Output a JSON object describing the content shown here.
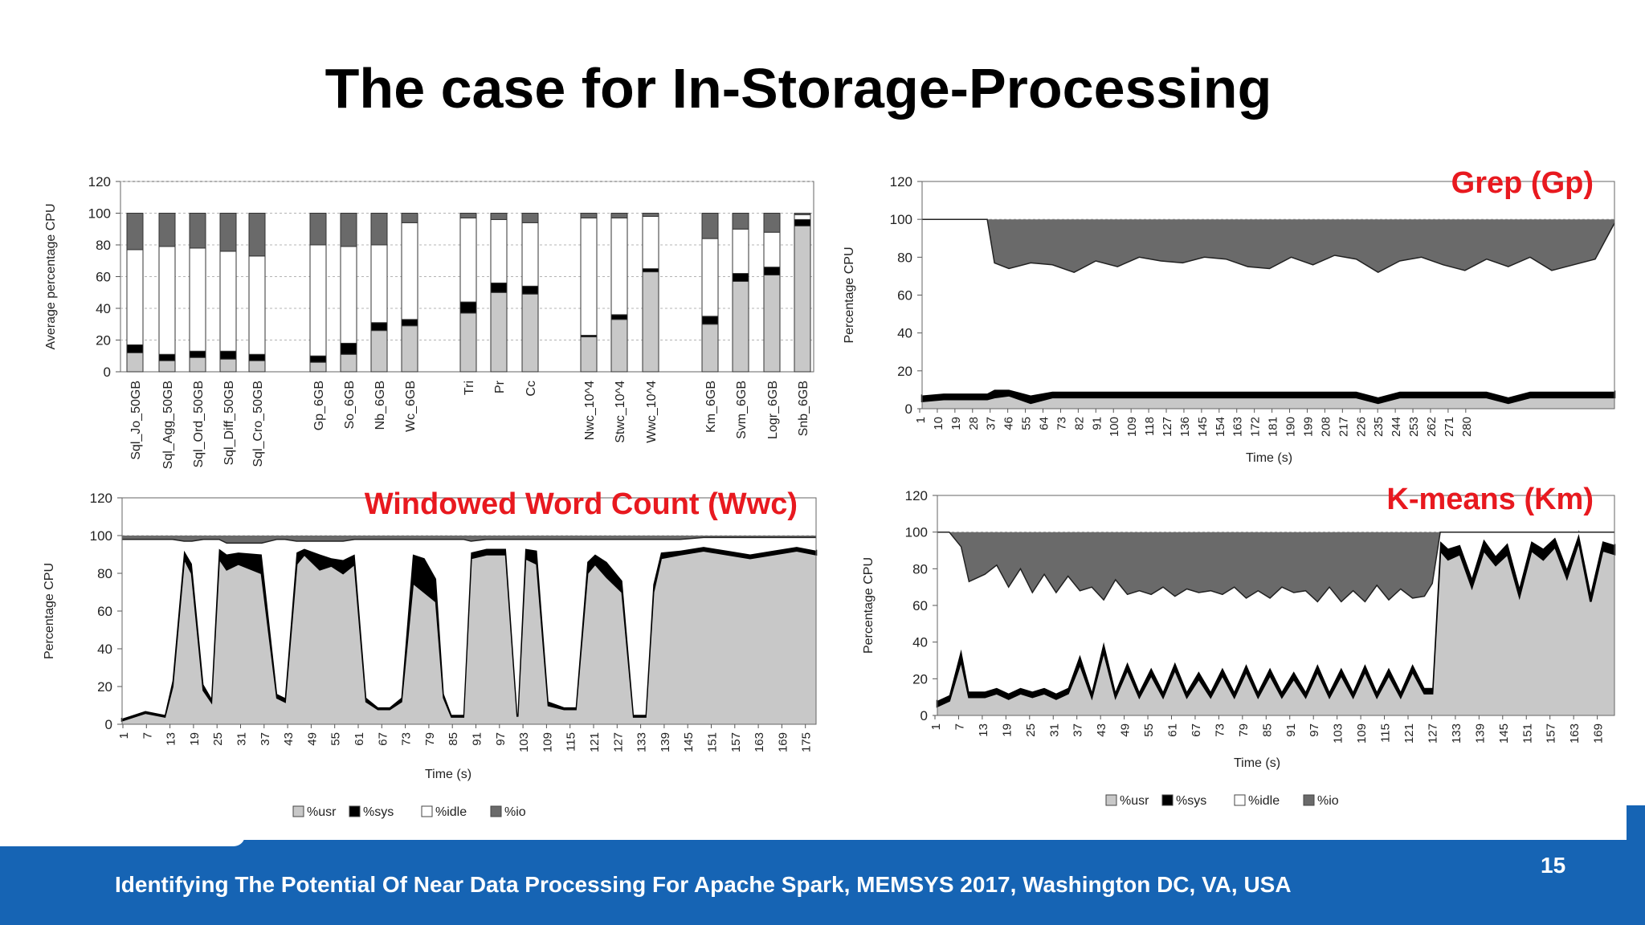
{
  "slide": {
    "title": "The case for In-Storage-Processing",
    "footer": "Identifying The Potential Of Near Data Processing For Apache Spark, MEMSYS 2017, Washington DC, VA, USA",
    "page_number": "15"
  },
  "colors": {
    "usr": "#c8c8c8",
    "sys": "#000000",
    "idle": "#ffffff",
    "io": "#6a6a6a",
    "title_red": "#e8191f",
    "footer_blue": "#1664b4"
  },
  "legend": [
    "%usr",
    "%sys",
    "%idle",
    "%io"
  ],
  "chart_data": [
    {
      "type": "bar",
      "stacked": true,
      "ylabel": "Average percentage CPU",
      "ylim": [
        0,
        120
      ],
      "yticks": [
        0,
        20,
        40,
        60,
        80,
        100,
        120
      ],
      "categories": [
        "Sql_Jo_50GB",
        "Sql_Agg_50GB",
        "Sql_Ord_50GB",
        "Sql_Diff_50GB",
        "Sql_Cro_50GB",
        "Gp_6GB",
        "So_6GB",
        "Nb_6GB",
        "Wc_6GB",
        "Tri",
        "Pr",
        "Cc",
        "Nwc_10^4",
        "Stwc_10^4",
        "Wwc_10^4",
        "Km_6GB",
        "Svm_6GB",
        "Logr_6GB",
        "Snb_6GB"
      ],
      "series": [
        {
          "name": "%usr",
          "values": [
            12,
            7,
            9,
            8,
            7,
            6,
            11,
            26,
            29,
            37,
            50,
            49,
            22,
            33,
            63,
            30,
            57,
            61,
            92
          ]
        },
        {
          "name": "%sys",
          "values": [
            5,
            4,
            4,
            5,
            4,
            4,
            7,
            5,
            4,
            7,
            6,
            5,
            1,
            3,
            2,
            5,
            5,
            5,
            4
          ]
        },
        {
          "name": "%idle",
          "values": [
            60,
            68,
            65,
            63,
            62,
            70,
            61,
            49,
            61,
            53,
            40,
            40,
            74,
            61,
            33,
            49,
            28,
            22,
            3
          ]
        },
        {
          "name": "%io",
          "values": [
            23,
            21,
            22,
            24,
            27,
            20,
            21,
            20,
            6,
            3,
            4,
            6,
            3,
            3,
            2,
            16,
            10,
            12,
            1
          ]
        }
      ]
    },
    {
      "type": "area",
      "stacked": true,
      "title": "Grep (Gp)",
      "xlabel": "Time (s)",
      "ylabel": "Percentage CPU",
      "ylim": [
        0,
        120
      ],
      "yticks": [
        0,
        20,
        40,
        60,
        80,
        100,
        120
      ],
      "xlim": [
        1,
        288
      ],
      "x_tick_labels": [
        "1",
        "10",
        "19",
        "28",
        "37",
        "46",
        "55",
        "64",
        "73",
        "82",
        "91",
        "100",
        "109",
        "118",
        "127",
        "136",
        "145",
        "154",
        "163",
        "172",
        "181",
        "190",
        "199",
        "208",
        "217",
        "226",
        "235",
        "244",
        "253",
        "262",
        "271",
        "280"
      ],
      "x": [
        1,
        10,
        19,
        28,
        31,
        37,
        46,
        55,
        64,
        73,
        82,
        91,
        100,
        109,
        118,
        127,
        136,
        145,
        154,
        163,
        172,
        181,
        190,
        199,
        208,
        217,
        226,
        235,
        244,
        253,
        262,
        271,
        280,
        288
      ],
      "series": [
        {
          "name": "%usr",
          "values": [
            4,
            5,
            5,
            5,
            6,
            7,
            3,
            6,
            6,
            6,
            6,
            6,
            6,
            6,
            6,
            6,
            6,
            6,
            6,
            6,
            6,
            6,
            3,
            6,
            6,
            6,
            6,
            6,
            3,
            6,
            6,
            6,
            6,
            6
          ]
        },
        {
          "name": "%sys",
          "values": [
            3,
            3,
            3,
            3,
            4,
            3,
            4,
            3,
            3,
            3,
            3,
            3,
            3,
            3,
            3,
            3,
            3,
            3,
            3,
            3,
            3,
            3,
            3,
            3,
            3,
            3,
            3,
            3,
            3,
            3,
            3,
            3,
            3,
            3
          ]
        },
        {
          "name": "%idle",
          "values": [
            93,
            92,
            92,
            92,
            67,
            64,
            70,
            67,
            63,
            69,
            66,
            71,
            69,
            68,
            71,
            70,
            66,
            65,
            71,
            67,
            72,
            70,
            66,
            69,
            71,
            67,
            64,
            70,
            69,
            71,
            64,
            67,
            70,
            89
          ]
        },
        {
          "name": "%io",
          "values": [
            0,
            0,
            0,
            0,
            23,
            26,
            23,
            24,
            28,
            22,
            25,
            20,
            22,
            23,
            20,
            21,
            25,
            26,
            20,
            24,
            19,
            21,
            28,
            22,
            20,
            24,
            27,
            21,
            25,
            20,
            27,
            24,
            21,
            2
          ]
        }
      ]
    },
    {
      "type": "area",
      "stacked": true,
      "title": "Windowed Word Count (Wwc)",
      "xlabel": "Time (s)",
      "ylabel": "Percentage CPU",
      "ylim": [
        0,
        120
      ],
      "yticks": [
        0,
        20,
        40,
        60,
        80,
        100,
        120
      ],
      "xlim": [
        1,
        180
      ],
      "x_tick_labels": [
        "1",
        "7",
        "13",
        "19",
        "25",
        "31",
        "37",
        "43",
        "49",
        "55",
        "61",
        "67",
        "73",
        "79",
        "85",
        "91",
        "97",
        "103",
        "109",
        "115",
        "121",
        "127",
        "133",
        "139",
        "145",
        "151",
        "157",
        "163",
        "169",
        "175"
      ],
      "x": [
        1,
        7,
        12,
        14,
        17,
        19,
        22,
        24,
        26,
        28,
        31,
        37,
        41,
        43,
        46,
        48,
        52,
        55,
        58,
        61,
        64,
        67,
        70,
        73,
        76,
        79,
        82,
        84,
        86,
        89,
        91,
        95,
        100,
        103,
        105,
        108,
        111,
        115,
        118,
        121,
        123,
        126,
        130,
        133,
        136,
        138,
        140,
        145,
        151,
        157,
        163,
        169,
        175,
        180
      ],
      "series": [
        {
          "name": "%usr",
          "values": [
            2,
            6,
            4,
            20,
            88,
            80,
            18,
            12,
            88,
            82,
            85,
            80,
            14,
            12,
            85,
            90,
            82,
            84,
            80,
            85,
            12,
            8,
            8,
            12,
            75,
            70,
            65,
            14,
            4,
            4,
            88,
            90,
            90,
            4,
            88,
            85,
            10,
            8,
            8,
            80,
            85,
            78,
            70,
            4,
            4,
            70,
            88,
            90,
            92,
            90,
            88,
            90,
            92,
            90
          ]
        },
        {
          "name": "%sys",
          "values": [
            1,
            1,
            1,
            3,
            4,
            5,
            3,
            2,
            5,
            8,
            6,
            10,
            2,
            2,
            6,
            3,
            8,
            4,
            7,
            5,
            2,
            1,
            1,
            2,
            15,
            18,
            12,
            2,
            1,
            1,
            3,
            3,
            3,
            1,
            5,
            7,
            2,
            1,
            1,
            6,
            5,
            8,
            6,
            1,
            1,
            4,
            3,
            2,
            2,
            2,
            2,
            2,
            2,
            2
          ]
        },
        {
          "name": "%idle",
          "values": [
            95,
            91,
            93,
            75,
            5,
            12,
            77,
            84,
            5,
            6,
            5,
            6,
            82,
            84,
            6,
            4,
            7,
            9,
            10,
            8,
            84,
            89,
            89,
            84,
            8,
            10,
            21,
            82,
            93,
            93,
            6,
            5,
            5,
            93,
            5,
            6,
            86,
            89,
            89,
            12,
            8,
            12,
            22,
            93,
            93,
            24,
            7,
            6,
            5,
            7,
            9,
            7,
            5,
            7
          ]
        },
        {
          "name": "%io",
          "values": [
            2,
            2,
            2,
            2,
            3,
            3,
            2,
            2,
            2,
            4,
            4,
            4,
            2,
            2,
            3,
            3,
            3,
            3,
            3,
            2,
            2,
            2,
            2,
            2,
            2,
            2,
            2,
            2,
            2,
            2,
            3,
            2,
            2,
            2,
            2,
            2,
            2,
            2,
            2,
            2,
            2,
            2,
            2,
            2,
            2,
            2,
            2,
            2,
            1,
            1,
            1,
            1,
            1,
            1
          ]
        }
      ]
    },
    {
      "type": "area",
      "stacked": true,
      "title": "K-means (Km)",
      "xlabel": "Time (s)",
      "ylabel": "Percentage CPU",
      "ylim": [
        0,
        120
      ],
      "yticks": [
        0,
        20,
        40,
        60,
        80,
        100,
        120
      ],
      "xlim": [
        1,
        172
      ],
      "x_tick_labels": [
        "1",
        "7",
        "13",
        "19",
        "25",
        "31",
        "37",
        "43",
        "49",
        "55",
        "61",
        "67",
        "73",
        "79",
        "85",
        "91",
        "97",
        "103",
        "109",
        "115",
        "121",
        "127",
        "133",
        "139",
        "145",
        "151",
        "157",
        "163",
        "169"
      ],
      "x": [
        1,
        4,
        7,
        9,
        13,
        16,
        19,
        22,
        25,
        28,
        31,
        34,
        37,
        40,
        43,
        46,
        49,
        52,
        55,
        58,
        61,
        64,
        67,
        70,
        73,
        76,
        79,
        82,
        85,
        88,
        91,
        94,
        97,
        100,
        103,
        106,
        109,
        112,
        115,
        118,
        121,
        124,
        126,
        128,
        130,
        133,
        136,
        139,
        142,
        145,
        148,
        151,
        154,
        157,
        160,
        163,
        166,
        169,
        172
      ],
      "series": [
        {
          "name": "%usr",
          "values": [
            5,
            8,
            30,
            10,
            10,
            12,
            9,
            12,
            10,
            12,
            9,
            12,
            28,
            10,
            35,
            10,
            25,
            10,
            22,
            10,
            25,
            10,
            20,
            10,
            22,
            10,
            24,
            10,
            22,
            10,
            20,
            10,
            24,
            10,
            22,
            10,
            24,
            10,
            22,
            10,
            24,
            12,
            12,
            90,
            85,
            88,
            70,
            90,
            82,
            88,
            65,
            90,
            85,
            92,
            75,
            95,
            62,
            90,
            88
          ]
        },
        {
          "name": "%sys",
          "values": [
            3,
            3,
            6,
            3,
            3,
            3,
            3,
            3,
            3,
            3,
            3,
            3,
            5,
            3,
            5,
            3,
            4,
            3,
            4,
            3,
            4,
            3,
            4,
            3,
            4,
            3,
            4,
            3,
            4,
            3,
            4,
            3,
            4,
            3,
            4,
            3,
            4,
            3,
            4,
            3,
            4,
            3,
            3,
            5,
            6,
            5,
            5,
            6,
            5,
            6,
            5,
            5,
            6,
            5,
            5,
            4,
            5,
            5,
            5
          ]
        },
        {
          "name": "%idle",
          "values": [
            92,
            89,
            56,
            60,
            64,
            67,
            58,
            65,
            54,
            62,
            55,
            61,
            35,
            57,
            23,
            61,
            37,
            55,
            40,
            57,
            36,
            56,
            43,
            55,
            40,
            57,
            36,
            55,
            38,
            57,
            43,
            55,
            34,
            57,
            36,
            55,
            34,
            58,
            37,
            56,
            36,
            50,
            57,
            5,
            9,
            7,
            25,
            4,
            13,
            6,
            30,
            5,
            9,
            3,
            20,
            1,
            33,
            5,
            7
          ]
        },
        {
          "name": "%io",
          "values": [
            0,
            0,
            8,
            27,
            23,
            18,
            30,
            20,
            33,
            23,
            33,
            24,
            32,
            30,
            37,
            26,
            34,
            32,
            34,
            30,
            35,
            31,
            33,
            32,
            34,
            30,
            36,
            32,
            36,
            30,
            33,
            32,
            38,
            30,
            38,
            32,
            38,
            29,
            37,
            31,
            36,
            35,
            28,
            0,
            0,
            0,
            0,
            0,
            0,
            0,
            0,
            0,
            0,
            0,
            0,
            0,
            0,
            0,
            0
          ]
        }
      ]
    }
  ]
}
